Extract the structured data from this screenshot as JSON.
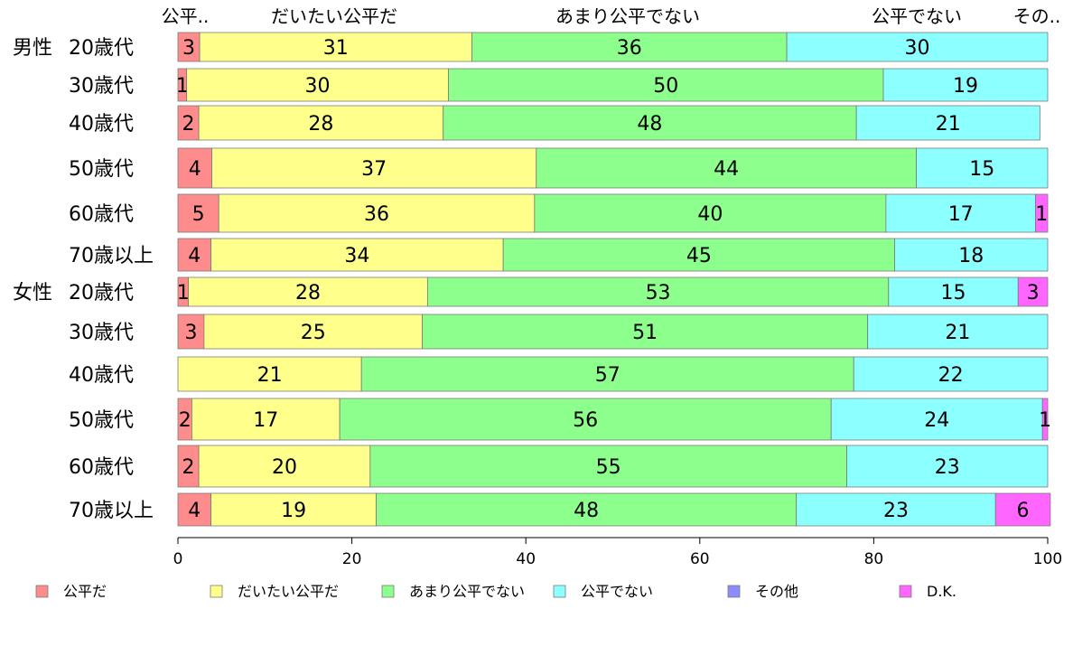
{
  "chart_data": {
    "type": "bar",
    "orientation": "horizontal",
    "stacked": true,
    "xlim": [
      0,
      100
    ],
    "x_ticks": [
      0,
      20,
      40,
      60,
      80,
      100
    ],
    "group_labels": [
      "男性",
      "女性"
    ],
    "top_headers": [
      "公平..",
      "だいたい公平だ",
      "あまり公平でない",
      "公平でない",
      "その.."
    ],
    "categories": [
      {
        "group": "男性",
        "label": "20歳代"
      },
      {
        "group": "",
        "label": "30歳代"
      },
      {
        "group": "",
        "label": "40歳代"
      },
      {
        "group": "",
        "label": "50歳代"
      },
      {
        "group": "",
        "label": "60歳代"
      },
      {
        "group": "",
        "label": "70歳以上"
      },
      {
        "group": "女性",
        "label": "20歳代"
      },
      {
        "group": "",
        "label": "30歳代"
      },
      {
        "group": "",
        "label": "40歳代"
      },
      {
        "group": "",
        "label": "50歳代"
      },
      {
        "group": "",
        "label": "60歳代"
      },
      {
        "group": "",
        "label": "70歳以上"
      }
    ],
    "series": [
      {
        "name": "公平だ",
        "color": "#ff8c8c",
        "values": [
          2.5,
          1,
          2.4,
          3.9,
          4.7,
          3.8,
          1.2,
          3,
          0,
          1.6,
          2.4,
          3.8
        ]
      },
      {
        "name": "だいたい公平だ",
        "color": "#ffff8c",
        "values": [
          31.3,
          30.1,
          28.1,
          37.3,
          36.3,
          33.6,
          27.5,
          25.1,
          21.1,
          17,
          19.7,
          19
        ]
      },
      {
        "name": "あまり公平でない",
        "color": "#8cff8c",
        "values": [
          36.2,
          50,
          47.5,
          43.7,
          40.4,
          45,
          53,
          51.2,
          56.6,
          56.5,
          54.8,
          48.3
        ]
      },
      {
        "name": "公平でない",
        "color": "#8cffff",
        "values": [
          30,
          18.9,
          21.1,
          15.1,
          17.2,
          17.6,
          14.9,
          20.7,
          22.3,
          24.3,
          23.1,
          22.9
        ]
      },
      {
        "name": "その他",
        "color": "#8c8cff",
        "values": [
          0,
          0,
          0,
          0,
          0,
          0,
          0,
          0,
          0,
          0,
          0,
          0
        ]
      },
      {
        "name": "D.K.",
        "color": "#ff66ff",
        "values": [
          0,
          0,
          0,
          0,
          1.4,
          0,
          3.4,
          0,
          0,
          0.6,
          0,
          6.3
        ]
      }
    ],
    "labels": [
      [
        "3",
        "31",
        "36",
        "30",
        "",
        ""
      ],
      [
        "1",
        "30",
        "50",
        "19",
        "",
        ""
      ],
      [
        "2",
        "28",
        "48",
        "21",
        "",
        ""
      ],
      [
        "4",
        "37",
        "44",
        "15",
        "",
        ""
      ],
      [
        "5",
        "36",
        "40",
        "17",
        "",
        "1"
      ],
      [
        "4",
        "34",
        "45",
        "18",
        "",
        ""
      ],
      [
        "1",
        "28",
        "53",
        "15",
        "",
        "3"
      ],
      [
        "3",
        "25",
        "51",
        "21",
        "",
        ""
      ],
      [
        "",
        "21",
        "57",
        "22",
        "",
        ""
      ],
      [
        "2",
        "17",
        "56",
        "24",
        "",
        "1"
      ],
      [
        "2",
        "20",
        "55",
        "23",
        "",
        ""
      ],
      [
        "4",
        "19",
        "48",
        "23",
        "",
        "6"
      ]
    ],
    "legend_position": "bottom"
  }
}
